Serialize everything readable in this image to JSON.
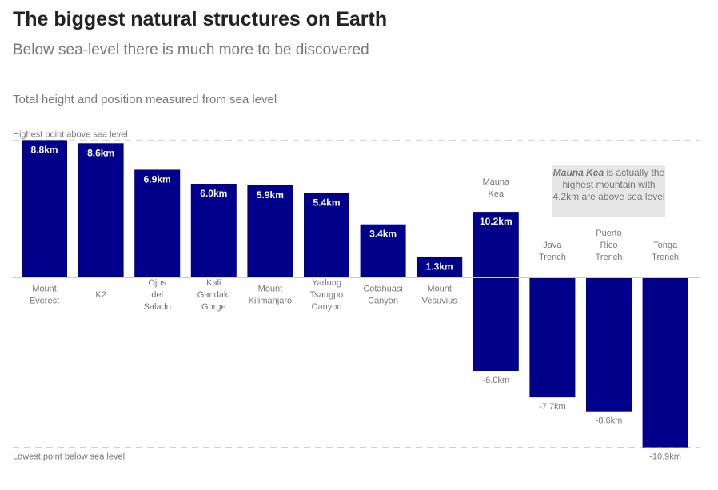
{
  "title": "The biggest natural structures on Earth",
  "subtitle": "Below sea-level there is much more to be discovered",
  "note": "Total height and position measured from sea level",
  "annotation": {
    "bold": "Mauna Kea",
    "rest": " is actually the highest mountain with 4.2km are above sea level"
  },
  "chart_data": {
    "type": "bar",
    "title": "",
    "ylabel": "",
    "ylim": [
      -10.9,
      8.8
    ],
    "reference_lines": [
      {
        "label": "Highest point above sea level",
        "value": 8.8
      },
      {
        "label": "Lowest point below sea level",
        "value": -10.9
      }
    ],
    "categories": [
      [
        "Mount",
        "Everest"
      ],
      [
        "K2"
      ],
      [
        "Ojos",
        "del",
        "Salado"
      ],
      [
        "Kali",
        "Gandaki",
        "Gorge"
      ],
      [
        "Mount",
        "Kilimanjaro"
      ],
      [
        "Yarlung",
        "Tsangpo",
        "Canyon"
      ],
      [
        "Cotahuasi",
        "Canyon"
      ],
      [
        "Mount",
        "Vesuvius"
      ],
      [
        "Mauna",
        "Kea"
      ],
      [
        "Java",
        "Trench"
      ],
      [
        "Puerto",
        "Rico",
        "Trench"
      ],
      [
        "Tonga",
        "Trench"
      ]
    ],
    "top": [
      8.8,
      8.6,
      6.9,
      6.0,
      5.9,
      5.4,
      3.4,
      1.3,
      4.2,
      0,
      0,
      0
    ],
    "bottom": [
      0,
      0,
      0,
      0,
      0,
      0,
      0,
      0,
      -6.0,
      -7.7,
      -8.6,
      -10.9
    ],
    "labels": [
      "8.8km",
      "8.6km",
      "6.9km",
      "6.0km",
      "5.9km",
      "5.4km",
      "3.4km",
      "1.3km",
      "10.2km",
      "-7.7km",
      "-8.6km",
      "-10.9km"
    ],
    "bottom_labels": {
      "8": "-6.0km"
    },
    "colors": {
      "bar": "#00008b",
      "axis": "#cccccc",
      "text": "#777777"
    }
  }
}
